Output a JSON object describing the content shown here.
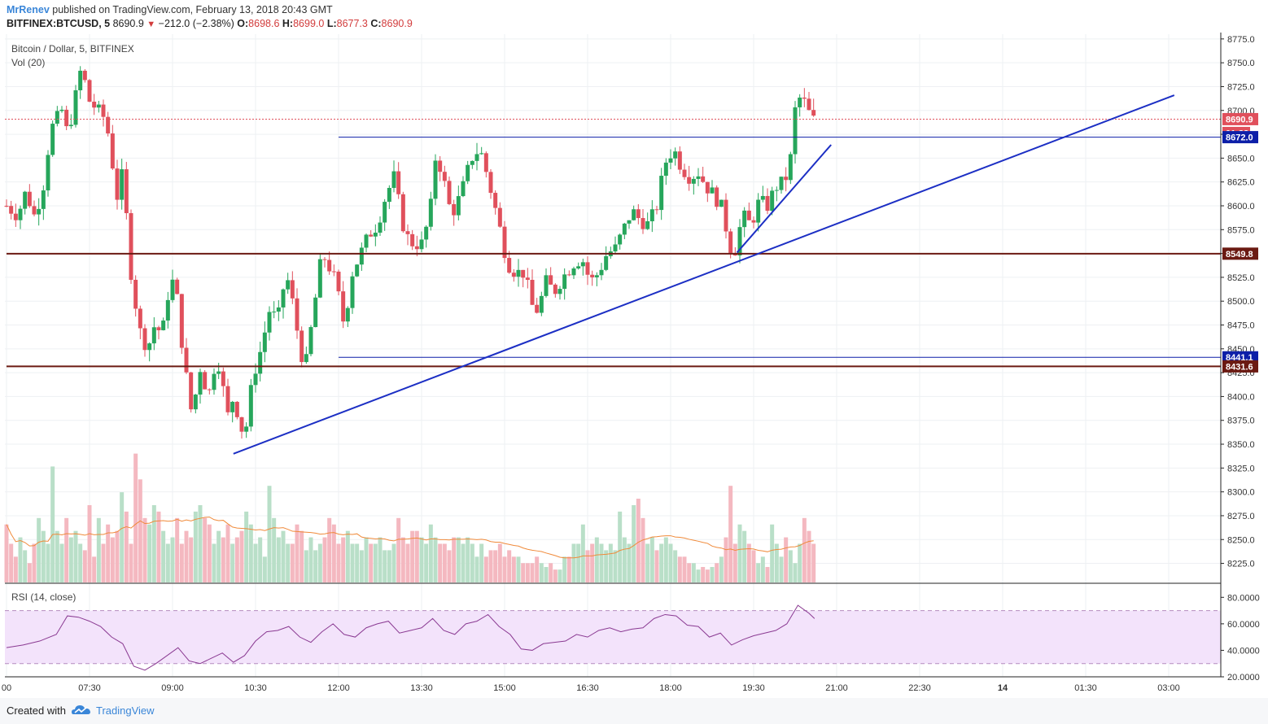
{
  "header": {
    "user": "MrRenev",
    "published": "published on TradingView.com, February 13, 2018 20:43 GMT",
    "symbol": "BITFINEX:BTCUSD, 5",
    "last": "8690.9",
    "change": "−212.0 (−2.38%)",
    "o_label": "O:",
    "o_value": "8698.6",
    "h_label": "H:",
    "h_value": "8699.0",
    "l_label": "L:",
    "l_value": "8677.3",
    "c_label": "C:",
    "c_value": "8690.9"
  },
  "legend": {
    "main": "Bitcoin / Dollar, 5, BITFINEX",
    "volume": "Vol (20)",
    "rsi": "RSI (14, close)"
  },
  "footer": {
    "created": "Created with",
    "brand": "TradingView"
  },
  "colors": {
    "up": "#26a65b",
    "down": "#e0505c",
    "up_vol": "#b9dfc8",
    "down_vol": "#f4b8c0",
    "trendline": "#1c2fc4",
    "support": "#6b1a12",
    "level_blue": "#0d1fa8",
    "rsi_line": "#8a3a92",
    "rsi_band": "#f3e3fb",
    "vol_ma": "#f08a3a"
  },
  "chart_data": [
    {
      "type": "candlestick",
      "title": "Bitcoin / Dollar, 5, BITFINEX",
      "ylim": [
        8205,
        8780
      ],
      "y_ticks": [
        "8225.0",
        "8250.0",
        "8275.0",
        "8300.0",
        "8325.0",
        "8350.0",
        "8375.0",
        "8400.0",
        "8425.0",
        "8450.0",
        "8475.0",
        "8500.0",
        "8525.0",
        "8550.0",
        "8575.0",
        "8600.0",
        "8625.0",
        "8650.0",
        "8675.0",
        "8700.0",
        "8725.0",
        "8750.0",
        "8775.0"
      ],
      "x_ticks": [
        "00",
        "07:30",
        "09:00",
        "10:30",
        "12:00",
        "13:30",
        "15:00",
        "16:30",
        "18:00",
        "19:30",
        "21:00",
        "22:30",
        "14",
        "01:30",
        "03:00"
      ],
      "x_tick_hours": [
        6,
        7.5,
        9,
        10.5,
        12,
        13.5,
        15,
        16.5,
        18,
        19.5,
        21,
        22.5,
        24,
        25.5,
        27
      ],
      "close_path": [
        [
          6.0,
          8600
        ],
        [
          6.2,
          8590
        ],
        [
          6.35,
          8615
        ],
        [
          6.5,
          8590
        ],
        [
          6.65,
          8615
        ],
        [
          6.8,
          8680
        ],
        [
          7.0,
          8700
        ],
        [
          7.1,
          8675
        ],
        [
          7.2,
          8700
        ],
        [
          7.35,
          8745
        ],
        [
          7.5,
          8710
        ],
        [
          7.65,
          8700
        ],
        [
          7.8,
          8690
        ],
        [
          7.9,
          8650
        ],
        [
          8.0,
          8610
        ],
        [
          8.1,
          8635
        ],
        [
          8.25,
          8530
        ],
        [
          8.4,
          8470
        ],
        [
          8.55,
          8450
        ],
        [
          8.7,
          8480
        ],
        [
          8.8,
          8460
        ],
        [
          8.95,
          8520
        ],
        [
          9.05,
          8520
        ],
        [
          9.2,
          8440
        ],
        [
          9.35,
          8380
        ],
        [
          9.5,
          8430
        ],
        [
          9.65,
          8400
        ],
        [
          9.8,
          8445
        ],
        [
          10.0,
          8380
        ],
        [
          10.1,
          8400
        ],
        [
          10.3,
          8355
        ],
        [
          10.45,
          8420
        ],
        [
          10.6,
          8450
        ],
        [
          10.75,
          8490
        ],
        [
          10.9,
          8480
        ],
        [
          11.05,
          8530
        ],
        [
          11.2,
          8490
        ],
        [
          11.3,
          8450
        ],
        [
          11.4,
          8430
        ],
        [
          11.5,
          8470
        ],
        [
          11.7,
          8550
        ],
        [
          11.8,
          8540
        ],
        [
          11.95,
          8520
        ],
        [
          12.1,
          8475
        ],
        [
          12.25,
          8530
        ],
        [
          12.4,
          8550
        ],
        [
          12.55,
          8570
        ],
        [
          12.7,
          8580
        ],
        [
          12.85,
          8610
        ],
        [
          13.0,
          8630
        ],
        [
          13.1,
          8600
        ],
        [
          13.2,
          8570
        ],
        [
          13.35,
          8560
        ],
        [
          13.5,
          8560
        ],
        [
          13.65,
          8590
        ],
        [
          13.75,
          8650
        ],
        [
          13.85,
          8640
        ],
        [
          14.0,
          8600
        ],
        [
          14.1,
          8595
        ],
        [
          14.25,
          8620
        ],
        [
          14.4,
          8650
        ],
        [
          14.55,
          8660
        ],
        [
          14.65,
          8640
        ],
        [
          14.8,
          8605
        ],
        [
          14.9,
          8580
        ],
        [
          15.05,
          8540
        ],
        [
          15.2,
          8530
        ],
        [
          15.35,
          8530
        ],
        [
          15.5,
          8495
        ],
        [
          15.6,
          8490
        ],
        [
          15.75,
          8520
        ],
        [
          15.9,
          8510
        ],
        [
          16.05,
          8525
        ],
        [
          16.25,
          8540
        ],
        [
          16.4,
          8545
        ],
        [
          16.55,
          8520
        ],
        [
          16.7,
          8530
        ],
        [
          16.85,
          8550
        ],
        [
          17.0,
          8555
        ],
        [
          17.15,
          8575
        ],
        [
          17.3,
          8595
        ],
        [
          17.45,
          8585
        ],
        [
          17.6,
          8580
        ],
        [
          17.75,
          8600
        ],
        [
          17.9,
          8645
        ],
        [
          18.05,
          8660
        ],
        [
          18.2,
          8640
        ],
        [
          18.35,
          8630
        ],
        [
          18.5,
          8635
        ],
        [
          18.65,
          8620
        ],
        [
          18.8,
          8610
        ],
        [
          18.95,
          8595
        ],
        [
          19.05,
          8560
        ],
        [
          19.15,
          8550
        ],
        [
          19.3,
          8590
        ],
        [
          19.45,
          8580
        ],
        [
          19.6,
          8605
        ],
        [
          19.75,
          8600
        ],
        [
          19.9,
          8620
        ],
        [
          20.05,
          8625
        ],
        [
          20.15,
          8640
        ],
        [
          20.25,
          8700
        ],
        [
          20.35,
          8715
        ],
        [
          20.45,
          8705
        ],
        [
          20.55,
          8690
        ]
      ],
      "close_path_units": "[hour since 00:00 Feb 13, price]",
      "price_labels": [
        {
          "text": "8690.9",
          "value": 8690.9,
          "kind": "last"
        },
        {
          "text": "01:32",
          "value": 8677,
          "kind": "countdown"
        },
        {
          "text": "8672.0",
          "value": 8672.0,
          "kind": "level"
        },
        {
          "text": "8549.8",
          "value": 8549.8,
          "kind": "support"
        },
        {
          "text": "8441.1",
          "value": 8441.1,
          "kind": "level"
        },
        {
          "text": "8431.6",
          "value": 8431.6,
          "kind": "support"
        }
      ],
      "horizontal_lines": [
        {
          "value": 8549.8,
          "kind": "support",
          "from_hour": 6.0,
          "to_hour": 30.0
        },
        {
          "value": 8431.6,
          "kind": "support",
          "from_hour": 6.0,
          "to_hour": 30.0
        },
        {
          "value": 8672.0,
          "kind": "level",
          "from_hour": 12.0,
          "to_hour": 30.0
        },
        {
          "value": 8441.1,
          "kind": "level",
          "from_hour": 12.0,
          "to_hour": 30.0
        }
      ],
      "trendlines": [
        {
          "from": [
            10.1,
            8340
          ],
          "to": [
            27.1,
            8716
          ]
        },
        {
          "from": [
            19.2,
            8551
          ],
          "to": [
            20.9,
            8664
          ]
        }
      ],
      "last_price_line": 8690.9
    },
    {
      "type": "bar",
      "title": "Vol (20)",
      "series_note": "volume bars colored by candle direction with 20-period moving average",
      "relative_volumes": [
        0.45,
        0.3,
        0.2,
        0.35,
        0.25,
        0.15,
        0.3,
        0.5,
        0.4,
        0.3,
        0.9,
        0.4,
        0.3,
        0.5,
        0.35,
        0.4,
        0.3,
        0.25,
        0.6,
        0.2,
        0.5,
        0.3,
        0.45,
        0.35,
        0.4,
        0.7,
        0.55,
        0.3,
        1.0,
        0.8,
        0.5,
        0.45,
        0.6,
        0.55,
        0.4,
        0.3,
        0.35,
        0.5,
        0.3,
        0.4,
        0.35,
        0.55,
        0.6,
        0.5,
        0.45,
        0.3,
        0.4,
        0.35,
        0.45,
        0.3,
        0.35,
        0.4,
        0.55,
        0.45,
        0.3,
        0.35,
        0.2,
        0.75,
        0.5,
        0.35,
        0.4,
        0.3,
        0.3,
        0.45,
        0.4,
        0.25,
        0.35,
        0.25,
        0.3,
        0.35,
        0.5,
        0.45,
        0.3,
        0.35,
        0.4,
        0.3,
        0.3,
        0.25,
        0.35,
        0.3,
        0.3,
        0.35,
        0.25,
        0.25,
        0.3,
        0.5,
        0.35,
        0.3,
        0.4,
        0.4,
        0.35,
        0.3,
        0.45,
        0.35,
        0.3,
        0.3,
        0.25,
        0.35,
        0.35,
        0.3,
        0.35,
        0.3,
        0.2,
        0.3,
        0.2,
        0.25,
        0.25,
        0.3,
        0.2,
        0.25,
        0.2,
        0.2,
        0.15,
        0.15,
        0.15,
        0.2,
        0.15,
        0.12,
        0.15,
        0.1,
        0.1,
        0.2,
        0.2,
        0.3,
        0.3,
        0.45,
        0.25,
        0.3,
        0.35,
        0.3,
        0.25,
        0.3,
        0.25,
        0.55,
        0.35,
        0.3,
        0.6,
        0.65,
        0.5,
        0.3,
        0.35,
        0.25,
        0.3,
        0.35,
        0.3,
        0.25,
        0.2,
        0.2,
        0.15,
        0.15,
        0.1,
        0.12,
        0.1,
        0.12,
        0.15,
        0.2,
        0.35,
        0.75,
        0.3,
        0.45,
        0.4,
        0.3,
        0.25,
        0.15,
        0.2,
        0.12
      ]
    },
    {
      "type": "line",
      "title": "RSI (14, close)",
      "ylim": [
        20,
        90
      ],
      "y_ticks": [
        "20.0000",
        "40.0000",
        "60.0000",
        "80.0000"
      ],
      "bands": [
        30,
        70
      ],
      "series": [
        {
          "x": [
            6.0,
            6.3,
            6.6,
            6.9,
            7.1,
            7.3,
            7.5,
            7.7,
            7.9,
            8.1,
            8.3,
            8.5,
            8.7,
            8.9,
            9.1,
            9.3,
            9.5,
            9.7,
            9.9,
            10.1,
            10.3,
            10.5,
            10.7,
            10.9,
            11.1,
            11.3,
            11.5,
            11.7,
            11.9,
            12.1,
            12.3,
            12.5,
            12.7,
            12.9,
            13.1,
            13.3,
            13.5,
            13.7,
            13.9,
            14.1,
            14.3,
            14.5,
            14.7,
            14.9,
            15.1,
            15.3,
            15.5,
            15.7,
            15.9,
            16.1,
            16.3,
            16.5,
            16.7,
            16.9,
            17.1,
            17.3,
            17.5,
            17.7,
            17.9,
            18.1,
            18.3,
            18.5,
            18.7,
            18.9,
            19.1,
            19.3,
            19.5,
            19.7,
            19.9,
            20.1,
            20.3,
            20.5,
            20.6
          ],
          "values": [
            42,
            44,
            47,
            52,
            66,
            65,
            62,
            58,
            50,
            45,
            28,
            25,
            30,
            36,
            42,
            32,
            30,
            34,
            38,
            31,
            36,
            47,
            54,
            55,
            58,
            50,
            46,
            54,
            60,
            52,
            50,
            57,
            60,
            62,
            53,
            55,
            57,
            64,
            55,
            52,
            60,
            62,
            67,
            58,
            52,
            41,
            40,
            45,
            46,
            47,
            52,
            50,
            55,
            57,
            54,
            56,
            57,
            64,
            67,
            66,
            59,
            58,
            50,
            53,
            44,
            48,
            51,
            53,
            55,
            60,
            74,
            68,
            64
          ]
        }
      ]
    }
  ]
}
